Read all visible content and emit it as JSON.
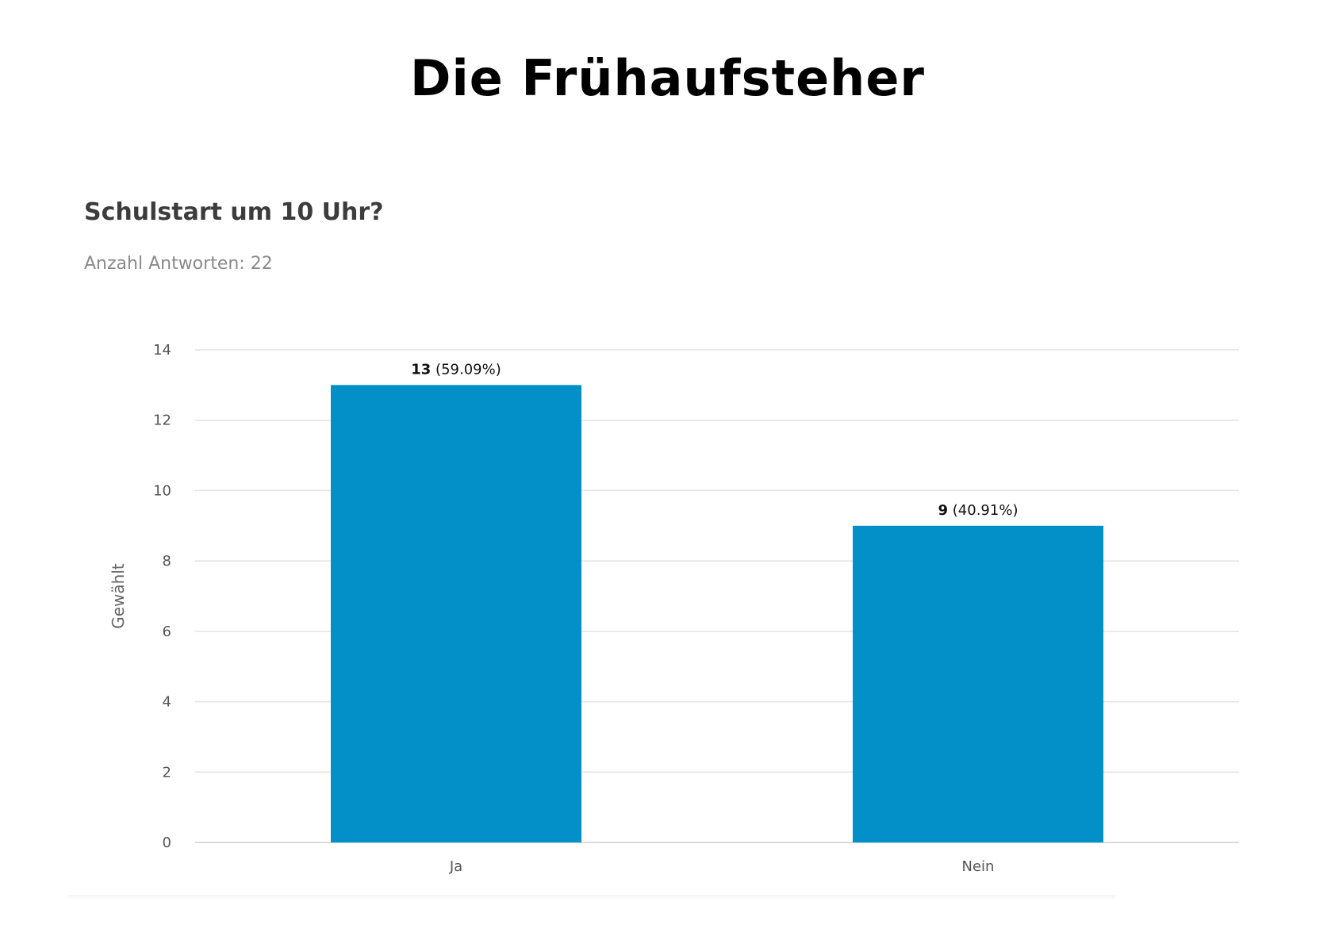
{
  "page": {
    "title": "Die Frühaufsteher"
  },
  "chart_data": {
    "type": "bar",
    "title": "Schulstart um 10 Uhr?",
    "subtitle": "Anzahl Antworten: 22",
    "categories": [
      "Ja",
      "Nein"
    ],
    "values": [
      13,
      9
    ],
    "value_labels": [
      {
        "count": "13",
        "percent": " (59.09%)"
      },
      {
        "count": "9",
        "percent": " (40.91%)"
      }
    ],
    "ylabel": "Gewählt",
    "xlabel": "",
    "ylim": [
      0,
      14
    ],
    "yticks": [
      0,
      2,
      4,
      6,
      8,
      10,
      12,
      14
    ],
    "grid": true,
    "bar_color": "#038FC8"
  }
}
